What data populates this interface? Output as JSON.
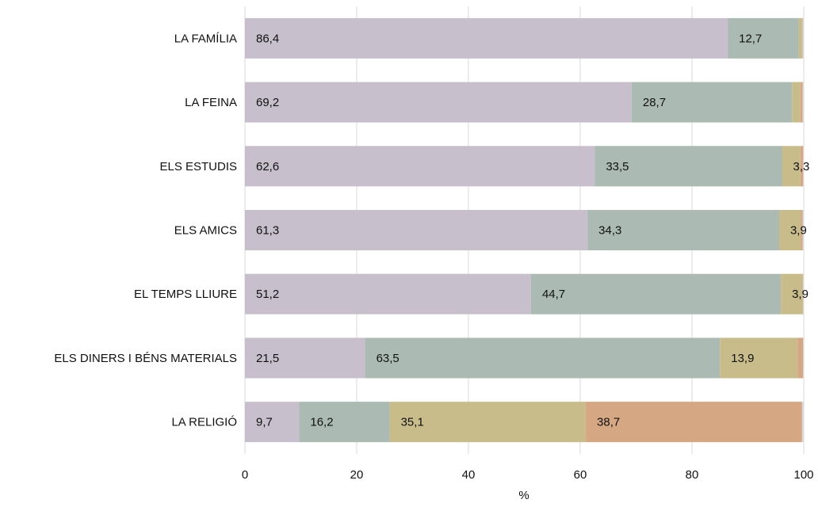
{
  "chart_data": {
    "type": "bar",
    "orientation": "horizontal",
    "stacked": true,
    "title": "",
    "xlabel": "%",
    "ylabel": "",
    "xlim": [
      0,
      100
    ],
    "x_ticks": [
      "0",
      "20",
      "40",
      "60",
      "80",
      "100"
    ],
    "grid": true,
    "legend": "none",
    "categories": [
      "LA FAMÍLIA",
      "LA FEINA",
      "ELS ESTUDIS",
      "ELS AMICS",
      "EL TEMPS LLIURE",
      "ELS DINERS I BÉNS MATERIALS",
      "LA RELIGIÓ"
    ],
    "series": [
      {
        "color": "#c8bfcc",
        "values": [
          86.4,
          69.2,
          62.6,
          61.3,
          51.2,
          21.5,
          9.7
        ],
        "labels": [
          "86,4",
          "69,2",
          "62,6",
          "61,3",
          "51,2",
          "21,5",
          "9,7"
        ]
      },
      {
        "color": "#abbab2",
        "values": [
          12.7,
          28.7,
          33.5,
          34.3,
          44.7,
          63.5,
          16.2
        ],
        "labels": [
          "12,7",
          "28,7",
          "33,5",
          "34,3",
          "44,7",
          "63,5",
          "16,2"
        ]
      },
      {
        "color": "#c8bd8a",
        "values": [
          0.6,
          1.5,
          3.3,
          3.9,
          3.9,
          13.9,
          35.1
        ],
        "labels": [
          "",
          "",
          "3,3",
          "3,9",
          "3,9",
          "13,9",
          "35,1"
        ]
      },
      {
        "color": "#d5a883",
        "values": [
          0.1,
          0.4,
          0.5,
          0.3,
          0.1,
          1.0,
          38.7
        ],
        "labels": [
          "",
          "",
          "",
          "",
          "",
          "",
          "38,7"
        ]
      },
      {
        "color": "#d9d9d9",
        "values": [
          0.2,
          0.2,
          0.1,
          0.2,
          0.1,
          0.1,
          0.3
        ],
        "labels": [
          "",
          "",
          "",
          "",
          "",
          "",
          ""
        ]
      }
    ]
  }
}
